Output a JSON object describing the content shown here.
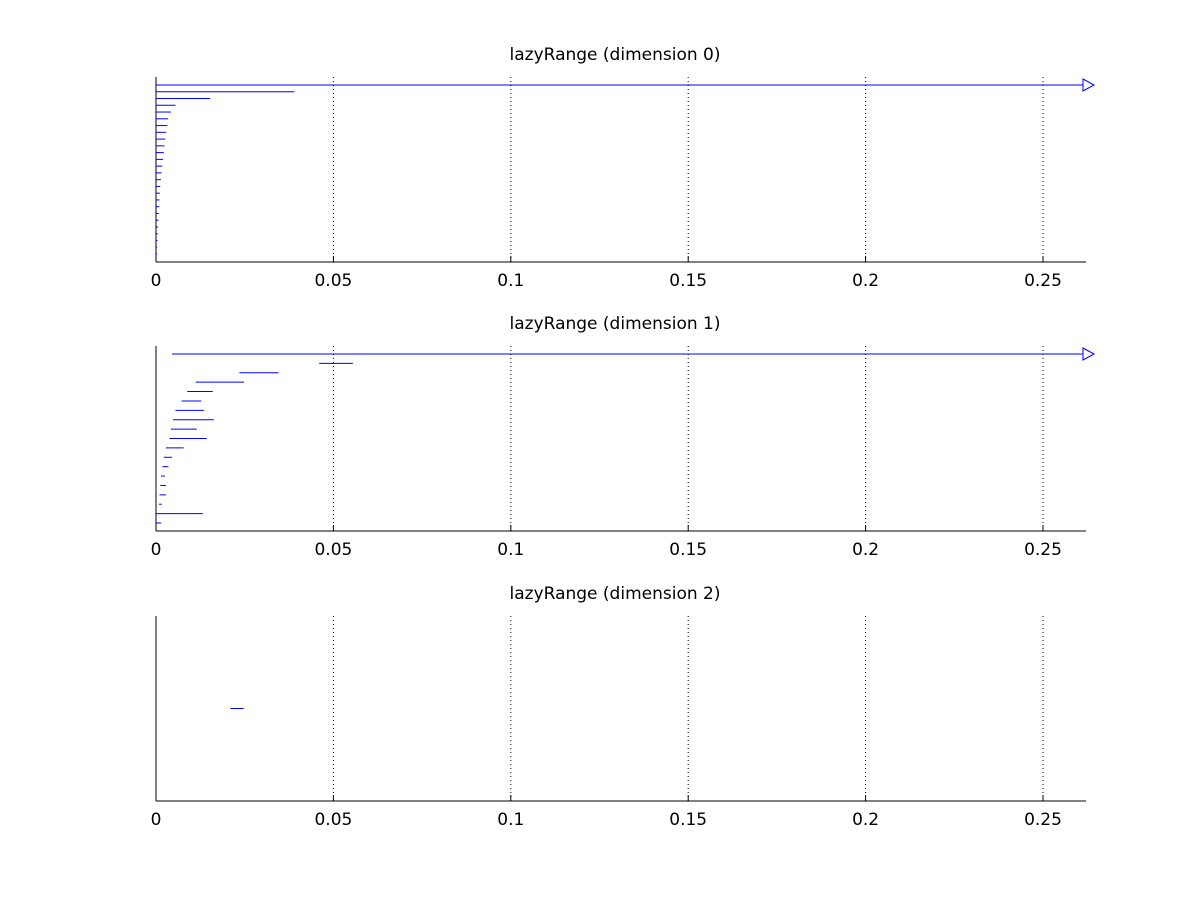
{
  "colors": {
    "bar": "#0000ff",
    "axis": "#000000",
    "grid": "#000000",
    "background": "#ffffff"
  },
  "chart_data": [
    {
      "type": "barcode",
      "title": "lazyRange (dimension 0)",
      "xlim": [
        0,
        0.262
      ],
      "xticks": [
        0,
        0.05,
        0.1,
        0.15,
        0.2,
        0.25
      ],
      "xtick_labels": [
        "0",
        "0.05",
        "0.1",
        "0.15",
        "0.2",
        "0.25"
      ],
      "grid": "vertical dotted at x ticks",
      "rows": 26,
      "intervals": [
        {
          "start": 0,
          "end": null,
          "infinite": true
        },
        {
          "start": 0,
          "end": 0.039
        },
        {
          "start": 0,
          "end": 0.0153
        },
        {
          "start": 0,
          "end": 0.0055
        },
        {
          "start": 0,
          "end": 0.0042
        },
        {
          "start": 0,
          "end": 0.0034
        },
        {
          "start": 0,
          "end": 0.0032
        },
        {
          "start": 0,
          "end": 0.0029
        },
        {
          "start": 0,
          "end": 0.0026
        },
        {
          "start": 0,
          "end": 0.0024
        },
        {
          "start": 0,
          "end": 0.0022
        },
        {
          "start": 0,
          "end": 0.002
        },
        {
          "start": 0,
          "end": 0.0018
        },
        {
          "start": 0,
          "end": 0.0016
        },
        {
          "start": 0,
          "end": 0.0014
        },
        {
          "start": 0,
          "end": 0.0012
        },
        {
          "start": 0,
          "end": 0.0011
        },
        {
          "start": 0,
          "end": 0.001
        },
        {
          "start": 0,
          "end": 0.0009
        },
        {
          "start": 0,
          "end": 0.0008
        },
        {
          "start": 0,
          "end": 0.0007
        },
        {
          "start": 0,
          "end": 0.0006
        },
        {
          "start": 0,
          "end": 0.0005
        },
        {
          "start": 0,
          "end": 0.0004
        },
        {
          "start": 0,
          "end": 0.0003
        },
        {
          "start": 0,
          "end": 0.0002
        }
      ]
    },
    {
      "type": "barcode",
      "title": "lazyRange (dimension 1)",
      "xlim": [
        0,
        0.262
      ],
      "xticks": [
        0,
        0.05,
        0.1,
        0.15,
        0.2,
        0.25
      ],
      "xtick_labels": [
        "0",
        "0.05",
        "0.1",
        "0.15",
        "0.2",
        "0.25"
      ],
      "grid": "vertical dotted at x ticks",
      "rows": 19,
      "intervals": [
        {
          "start": 0.0045,
          "end": null,
          "infinite": true
        },
        {
          "start": 0.046,
          "end": 0.0555
        },
        {
          "start": 0.0235,
          "end": 0.0345
        },
        {
          "start": 0.0112,
          "end": 0.0248
        },
        {
          "start": 0.0088,
          "end": 0.016
        },
        {
          "start": 0.0072,
          "end": 0.0128
        },
        {
          "start": 0.0055,
          "end": 0.0135
        },
        {
          "start": 0.0048,
          "end": 0.0163
        },
        {
          "start": 0.0042,
          "end": 0.0115
        },
        {
          "start": 0.0038,
          "end": 0.0143
        },
        {
          "start": 0.0028,
          "end": 0.0078
        },
        {
          "start": 0.0022,
          "end": 0.0045
        },
        {
          "start": 0.0018,
          "end": 0.0035
        },
        {
          "start": 0.0014,
          "end": 0.0025
        },
        {
          "start": 0.0012,
          "end": 0.0028
        },
        {
          "start": 0.001,
          "end": 0.0028
        },
        {
          "start": 0.0008,
          "end": 0.0016
        },
        {
          "start": 0,
          "end": 0.0132
        },
        {
          "start": 0,
          "end": 0.0015
        }
      ]
    },
    {
      "type": "barcode",
      "title": "lazyRange (dimension 2)",
      "xlim": [
        0,
        0.262
      ],
      "xticks": [
        0,
        0.05,
        0.1,
        0.15,
        0.2,
        0.25
      ],
      "xtick_labels": [
        "0",
        "0.05",
        "0.1",
        "0.15",
        "0.2",
        "0.25"
      ],
      "grid": "vertical dotted at x ticks",
      "rows": 1,
      "intervals": [
        {
          "start": 0.021,
          "end": 0.0247
        }
      ]
    }
  ]
}
